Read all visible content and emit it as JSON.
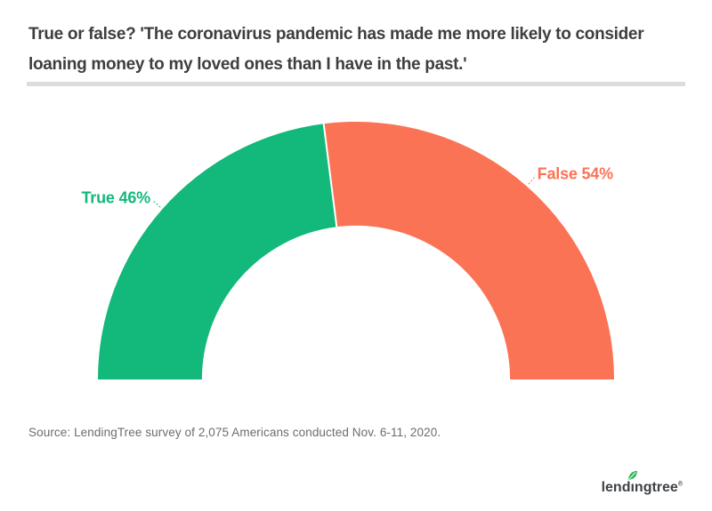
{
  "header": {
    "title": "True or false? 'The coronavirus pandemic has made me more likely to consider loaning money to my loved ones than I have in the past.'",
    "title_color": "#3e3e3e",
    "divider_color": "#dcdcdc"
  },
  "chart_data": {
    "type": "pie",
    "variant": "half-donut",
    "categories": [
      "True",
      "False"
    ],
    "values": [
      46,
      54
    ],
    "unit": "%",
    "series_colors": [
      "#13b87b",
      "#fb7355"
    ],
    "display_labels": [
      "True 46%",
      "False 54%"
    ],
    "start_angle_deg": 180,
    "end_angle_deg": 0,
    "inner_radius_ratio": 0.597,
    "legend": "none",
    "data_label_position": "outside",
    "title": "True or false? 'The coronavirus pandemic has made me more likely to consider loaning money to my loved ones than I have in the past.'"
  },
  "source": {
    "text": "Source: LendingTree survey of 2,075 Americans conducted Nov. 6-11, 2020."
  },
  "footer": {
    "logo": {
      "name": "lendingtree",
      "pre": "lend",
      "dotless_i": "ı",
      "post": "ngtree",
      "mark": "®",
      "text_color": "#3d4247",
      "leaf_color": "#2bb656"
    }
  }
}
